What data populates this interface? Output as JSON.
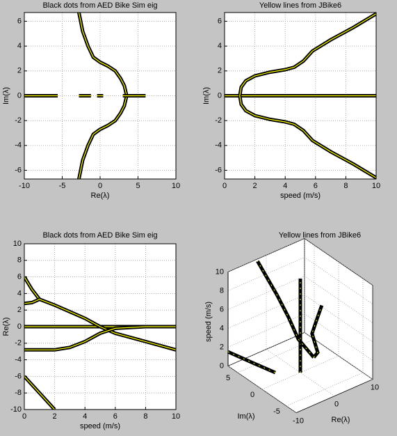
{
  "chart_data": [
    {
      "type": "line",
      "title": "Black dots from AED Bike Sim eig",
      "xlabel": "Re(λ)",
      "ylabel": "Im(λ)",
      "xlim": [
        -10,
        10
      ],
      "ylim": [
        -6.7,
        6.7
      ],
      "xticks": [
        -10,
        -5,
        0,
        5,
        10
      ],
      "yticks": [
        -6,
        -4,
        -2,
        0,
        2,
        4,
        6
      ],
      "grid": true,
      "color": "#000000",
      "inner_color": "#ffff00",
      "series": [
        {
          "x": [
            -2.8,
            -2.3,
            -1.6,
            -0.9,
            0,
            1,
            2,
            2.7,
            3.2,
            3.5
          ],
          "values": [
            6.7,
            5.2,
            4,
            3.1,
            2.7,
            2.4,
            2,
            1.4,
            0.8,
            0
          ]
        },
        {
          "x": [
            -2.8,
            -2.3,
            -1.6,
            -0.9,
            0,
            1,
            2,
            2.7,
            3.2,
            3.5
          ],
          "values": [
            -6.7,
            -5.2,
            -4,
            -3.1,
            -2.7,
            -2.4,
            -2,
            -1.4,
            -0.8,
            0
          ]
        },
        {
          "x": [
            -10,
            -5.6,
            -4,
            -2.8,
            -1.2,
            -1,
            -0.4,
            0.4,
            0.8,
            3,
            6
          ],
          "values": [
            0,
            0,
            null,
            0,
            0,
            null,
            0,
            0,
            null,
            0,
            0
          ]
        }
      ]
    },
    {
      "type": "line",
      "title": "Yellow lines from JBike6",
      "xlabel": "speed (m/s)",
      "ylabel": "Im(λ)",
      "xlim": [
        0,
        10
      ],
      "ylim": [
        -6.7,
        6.7
      ],
      "xticks": [
        0,
        2,
        4,
        6,
        8,
        10
      ],
      "yticks": [
        -6,
        -4,
        -2,
        0,
        2,
        4,
        6
      ],
      "grid": true,
      "color": "#000000",
      "inner_color": "#ffff00",
      "series": [
        {
          "x": [
            0,
            10
          ],
          "values": [
            0,
            0
          ]
        },
        {
          "x": [
            1,
            1.1,
            1.4,
            2,
            3,
            4,
            4.6,
            5.2,
            5.8,
            7,
            8.5,
            10
          ],
          "values": [
            0,
            0.7,
            1.2,
            1.6,
            1.9,
            2.1,
            2.3,
            2.8,
            3.6,
            4.5,
            5.5,
            6.6
          ]
        },
        {
          "x": [
            1,
            1.1,
            1.4,
            2,
            3,
            4,
            4.6,
            5.2,
            5.8,
            7,
            8.5,
            10
          ],
          "values": [
            0,
            -0.7,
            -1.2,
            -1.6,
            -1.9,
            -2.1,
            -2.3,
            -2.8,
            -3.6,
            -4.5,
            -5.5,
            -6.6
          ]
        }
      ]
    },
    {
      "type": "line",
      "title": "Black dots from AED Bike Sim eig",
      "xlabel": "speed (m/s)",
      "ylabel": "Re(λ)",
      "xlim": [
        0,
        10
      ],
      "ylim": [
        -10,
        10
      ],
      "xticks": [
        0,
        2,
        4,
        6,
        8,
        10
      ],
      "yticks": [
        -10,
        -8,
        -6,
        -4,
        -2,
        0,
        2,
        4,
        6,
        8,
        10
      ],
      "grid": true,
      "color": "#000000",
      "inner_color": "#ffff00",
      "series": [
        {
          "x": [
            0,
            10
          ],
          "values": [
            0,
            0
          ]
        },
        {
          "x": [
            0,
            0.5,
            1
          ],
          "values": [
            6,
            4.5,
            3.3
          ]
        },
        {
          "x": [
            0,
            0.5,
            1
          ],
          "values": [
            2.8,
            2.9,
            3.3
          ]
        },
        {
          "x": [
            1,
            2,
            3,
            4,
            5,
            6,
            8,
            10
          ],
          "values": [
            3.3,
            2.6,
            1.8,
            1,
            0,
            -0.8,
            -1.8,
            -2.8
          ]
        },
        {
          "x": [
            0,
            2,
            3,
            4,
            5,
            6,
            8,
            10
          ],
          "values": [
            -2.8,
            -2.8,
            -2.5,
            -1.8,
            -0.8,
            -0.2,
            0,
            0
          ]
        },
        {
          "x": [
            0,
            1,
            2
          ],
          "values": [
            -6,
            -8,
            -10
          ]
        }
      ]
    },
    {
      "type": "line3d",
      "title": "Yellow lines from JBike6",
      "xlabel": "Re(λ)",
      "ylabel": "Im(λ)",
      "zlabel": "speed (m/s)",
      "xlim": [
        -10,
        10
      ],
      "ylim": [
        -7,
        7
      ],
      "zlim": [
        0,
        10
      ],
      "xticks": [
        -10,
        0,
        10
      ],
      "yticks": [
        -5,
        0,
        5
      ],
      "zticks": [
        0,
        2,
        4,
        6,
        8,
        10
      ],
      "grid": true,
      "color": "#000000",
      "inner_color": "#ffff00",
      "series": [
        {
          "x": [
            0,
            0
          ],
          "y": [
            0,
            0
          ],
          "values": [
            0,
            10
          ]
        },
        {
          "x": [
            3.5,
            2,
            0,
            -1,
            -2.8
          ],
          "y": [
            0,
            2,
            2.4,
            4,
            6.6
          ],
          "values": [
            1,
            2.5,
            5,
            7,
            10
          ]
        },
        {
          "x": [
            3.5,
            2,
            0,
            -1,
            -2.8
          ],
          "y": [
            0,
            -2,
            -2.4,
            -4,
            -6.6
          ],
          "values": [
            1,
            2.5,
            5,
            7,
            10
          ]
        },
        {
          "x": [
            -10,
            -7,
            -4
          ],
          "y": [
            7,
            4,
            2
          ],
          "values": [
            1.5,
            0.8,
            0
          ]
        }
      ]
    }
  ]
}
